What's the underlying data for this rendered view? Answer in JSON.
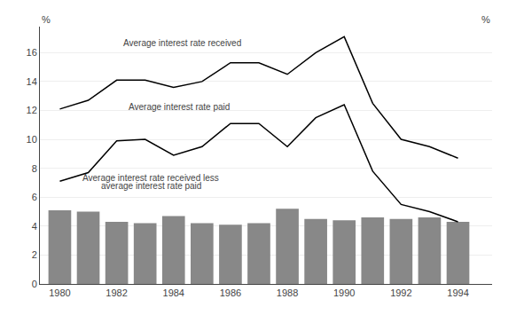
{
  "chart_data": {
    "type": "bar",
    "x": [
      1980,
      1981,
      1982,
      1983,
      1984,
      1985,
      1986,
      1987,
      1988,
      1989,
      1990,
      1991,
      1992,
      1993,
      1994
    ],
    "series": [
      {
        "type": "bar",
        "color": "#888888",
        "values": [
          5.1,
          5.0,
          4.3,
          4.2,
          4.7,
          4.2,
          4.1,
          4.2,
          5.2,
          4.5,
          4.4,
          4.6,
          4.5,
          4.6,
          4.3
        ]
      },
      {
        "type": "line",
        "color": "#000000",
        "values": [
          12.1,
          12.7,
          14.1,
          14.1,
          13.6,
          14.0,
          15.3,
          15.3,
          14.5,
          16.0,
          17.1,
          12.5,
          10.0,
          9.5,
          8.7
        ]
      },
      {
        "type": "line",
        "color": "#000000",
        "values": [
          7.1,
          7.7,
          9.9,
          10.0,
          8.9,
          9.5,
          11.1,
          11.1,
          9.5,
          11.5,
          12.4,
          7.8,
          5.5,
          5.0,
          4.3
        ]
      }
    ],
    "xlim": [
      1979.3,
      1995.2
    ],
    "xticks": [
      1980,
      1982,
      1984,
      1986,
      1988,
      1990,
      1992,
      1994
    ],
    "ylim": [
      0,
      17.8
    ],
    "yticks": [
      0,
      2,
      4,
      6,
      8,
      10,
      12,
      14,
      16
    ],
    "y2lim": [
      0,
      17.8
    ],
    "y2ticks": [
      0,
      2,
      4,
      6,
      8,
      10,
      12,
      14,
      16
    ],
    "ylabel": "%",
    "y2label": "%",
    "grid": true,
    "annotations": [
      {
        "text": "Average interest rate received",
        "x": 1984.3,
        "y": 16.2
      },
      {
        "text": "Average interest rate paid",
        "x": 1984.2,
        "y": 11.8
      },
      {
        "text": "Average interest rate received less",
        "x": 1983.2,
        "y": 6.85
      },
      {
        "text": "average interest rate paid",
        "x": 1983.2,
        "y": 6.35
      }
    ]
  }
}
